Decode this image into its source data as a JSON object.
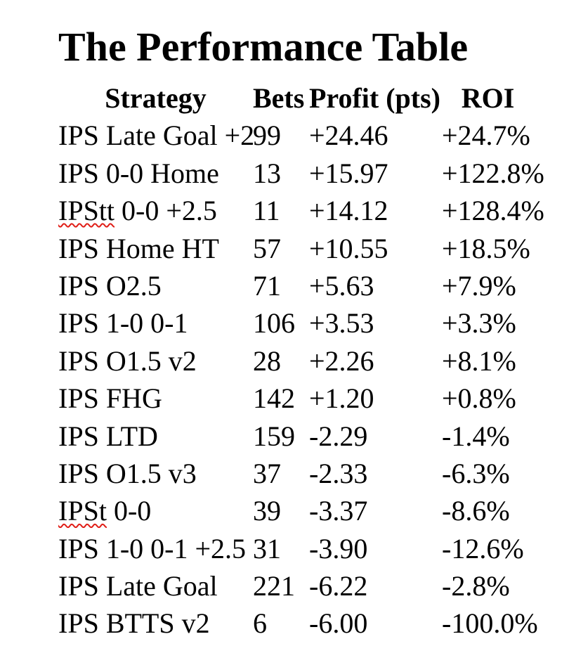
{
  "title": "The Performance Table",
  "colors": {
    "background": "#ffffff",
    "text": "#000000",
    "spellcheck_underline": "#e01e17"
  },
  "table": {
    "headers": [
      "Strategy",
      "Bets",
      "Profit (pts)",
      "ROI"
    ],
    "rows": [
      {
        "strategy": "IPS Late Goal +2",
        "bets": "99",
        "profit": "+24.46",
        "roi": "+24.7%",
        "misspelled_word": null
      },
      {
        "strategy": "IPS 0-0 Home",
        "bets": "13",
        "profit": "+15.97",
        "roi": "+122.8%",
        "misspelled_word": null
      },
      {
        "strategy": "IPStt 0-0 +2.5",
        "bets": "11",
        "profit": "+14.12",
        "roi": "+128.4%",
        "misspelled_word": "IPStt"
      },
      {
        "strategy": "IPS Home HT",
        "bets": "57",
        "profit": "+10.55",
        "roi": "+18.5%",
        "misspelled_word": null
      },
      {
        "strategy": "IPS O2.5",
        "bets": "71",
        "profit": "+5.63",
        "roi": "+7.9%",
        "misspelled_word": null
      },
      {
        "strategy": "IPS 1-0 0-1",
        "bets": "106",
        "profit": "+3.53",
        "roi": "+3.3%",
        "misspelled_word": null
      },
      {
        "strategy": "IPS O1.5 v2",
        "bets": "28",
        "profit": "+2.26",
        "roi": "+8.1%",
        "misspelled_word": null
      },
      {
        "strategy": "IPS FHG",
        "bets": "142",
        "profit": "+1.20",
        "roi": "+0.8%",
        "misspelled_word": null
      },
      {
        "strategy": "IPS LTD",
        "bets": "159",
        "profit": "-2.29",
        "roi": "-1.4%",
        "misspelled_word": null
      },
      {
        "strategy": "IPS O1.5 v3",
        "bets": "37",
        "profit": "-2.33",
        "roi": "-6.3%",
        "misspelled_word": null
      },
      {
        "strategy": "IPSt 0-0",
        "bets": "39",
        "profit": "-3.37",
        "roi": "-8.6%",
        "misspelled_word": "IPSt"
      },
      {
        "strategy": "IPS 1-0 0-1 +2.5",
        "bets": "31",
        "profit": "-3.90",
        "roi": "-12.6%",
        "misspelled_word": null
      },
      {
        "strategy": "IPS Late Goal",
        "bets": "221",
        "profit": "-6.22",
        "roi": "-2.8%",
        "misspelled_word": null
      },
      {
        "strategy": "IPS BTTS v2",
        "bets": "6",
        "profit": "-6.00",
        "roi": "-100.0%",
        "misspelled_word": null
      }
    ]
  }
}
